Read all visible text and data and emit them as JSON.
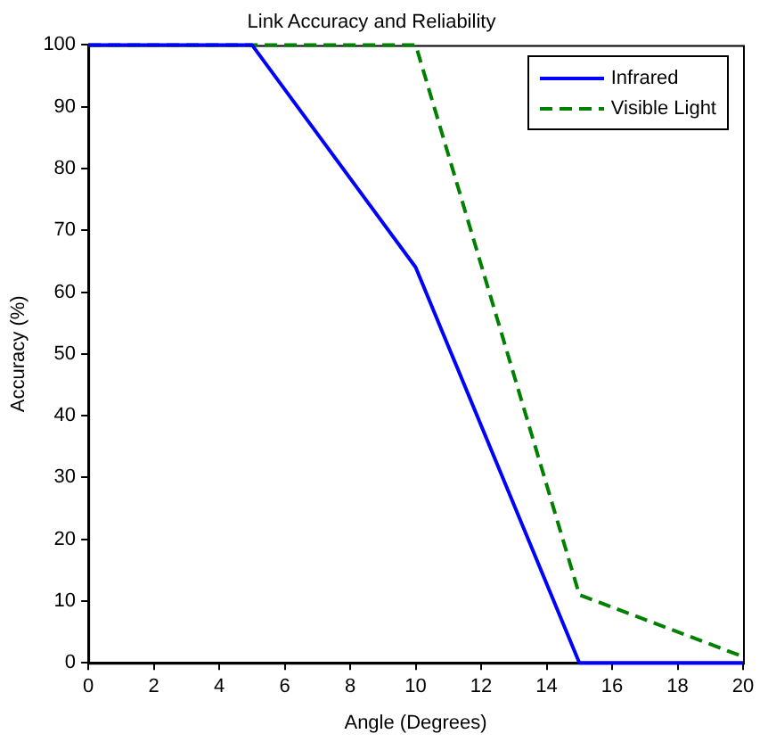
{
  "chart_data": {
    "type": "line",
    "title": "Link Accuracy and Reliability",
    "xlabel": "Angle (Degrees)",
    "ylabel": "Accuracy (%)",
    "x": [
      0,
      5,
      10,
      15,
      20
    ],
    "series": [
      {
        "name": "Infrared",
        "color": "#0000ff",
        "values": [
          100,
          100,
          64,
          0,
          0
        ],
        "line_style": "solid"
      },
      {
        "name": "Visible Light",
        "color": "#008000",
        "x": [
          0,
          10,
          15,
          20
        ],
        "values": [
          100,
          100,
          11,
          1
        ],
        "line_style": "dashed"
      }
    ],
    "xlim": [
      0,
      20
    ],
    "xticks": [
      0,
      2,
      4,
      6,
      8,
      10,
      12,
      14,
      16,
      18,
      20
    ],
    "ylim": [
      0,
      100
    ],
    "yticks": [
      0,
      10,
      20,
      30,
      40,
      50,
      60,
      70,
      80,
      90,
      100
    ],
    "grid": false,
    "legend": "top right",
    "marker": "none"
  }
}
